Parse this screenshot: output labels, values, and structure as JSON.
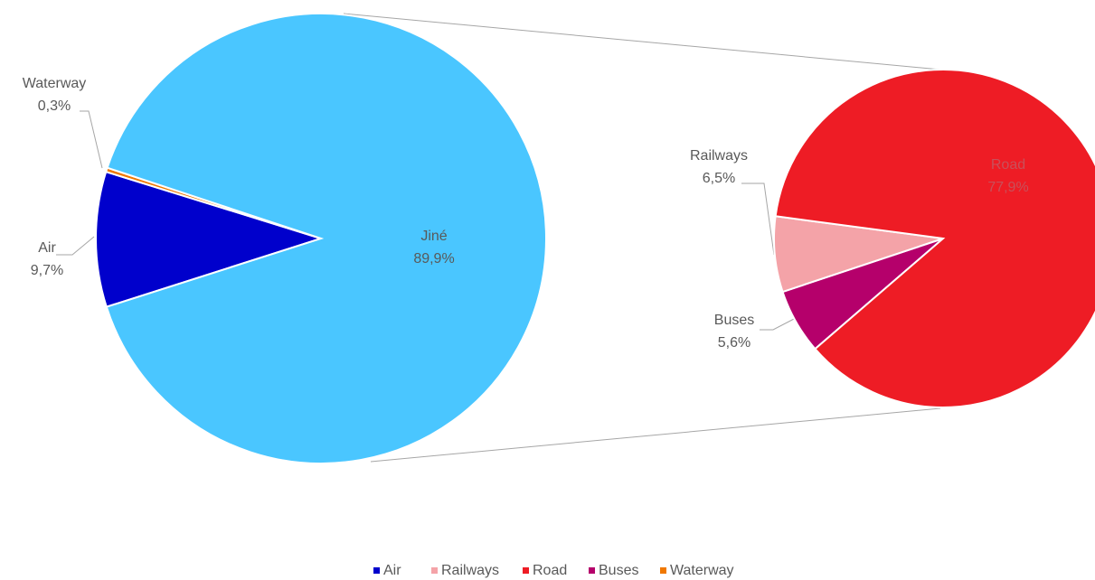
{
  "chart_data": {
    "type": "pie",
    "main": {
      "categories": [
        "Air",
        "Waterway",
        "Jiné"
      ],
      "values": [
        9.7,
        0.3,
        89.9
      ],
      "value_labels": [
        "9,7%",
        "0,3%",
        "89,9%"
      ],
      "colors": [
        "#0000cc",
        "#f07800",
        "#4ac6ff"
      ]
    },
    "secondary": {
      "categories": [
        "Buses",
        "Railways",
        "Road"
      ],
      "values": [
        5.6,
        6.5,
        77.9
      ],
      "value_labels": [
        "5,6%",
        "6,5%",
        "77,9%"
      ],
      "colors": [
        "#b5006b",
        "#f4a3a8",
        "#ee1c25"
      ]
    },
    "legend": [
      "Air",
      "Railways",
      "Road",
      "Buses",
      "Waterway"
    ],
    "legend_colors": [
      "#0000cc",
      "#f4a3a8",
      "#ee1c25",
      "#b5006b",
      "#f07800"
    ]
  }
}
